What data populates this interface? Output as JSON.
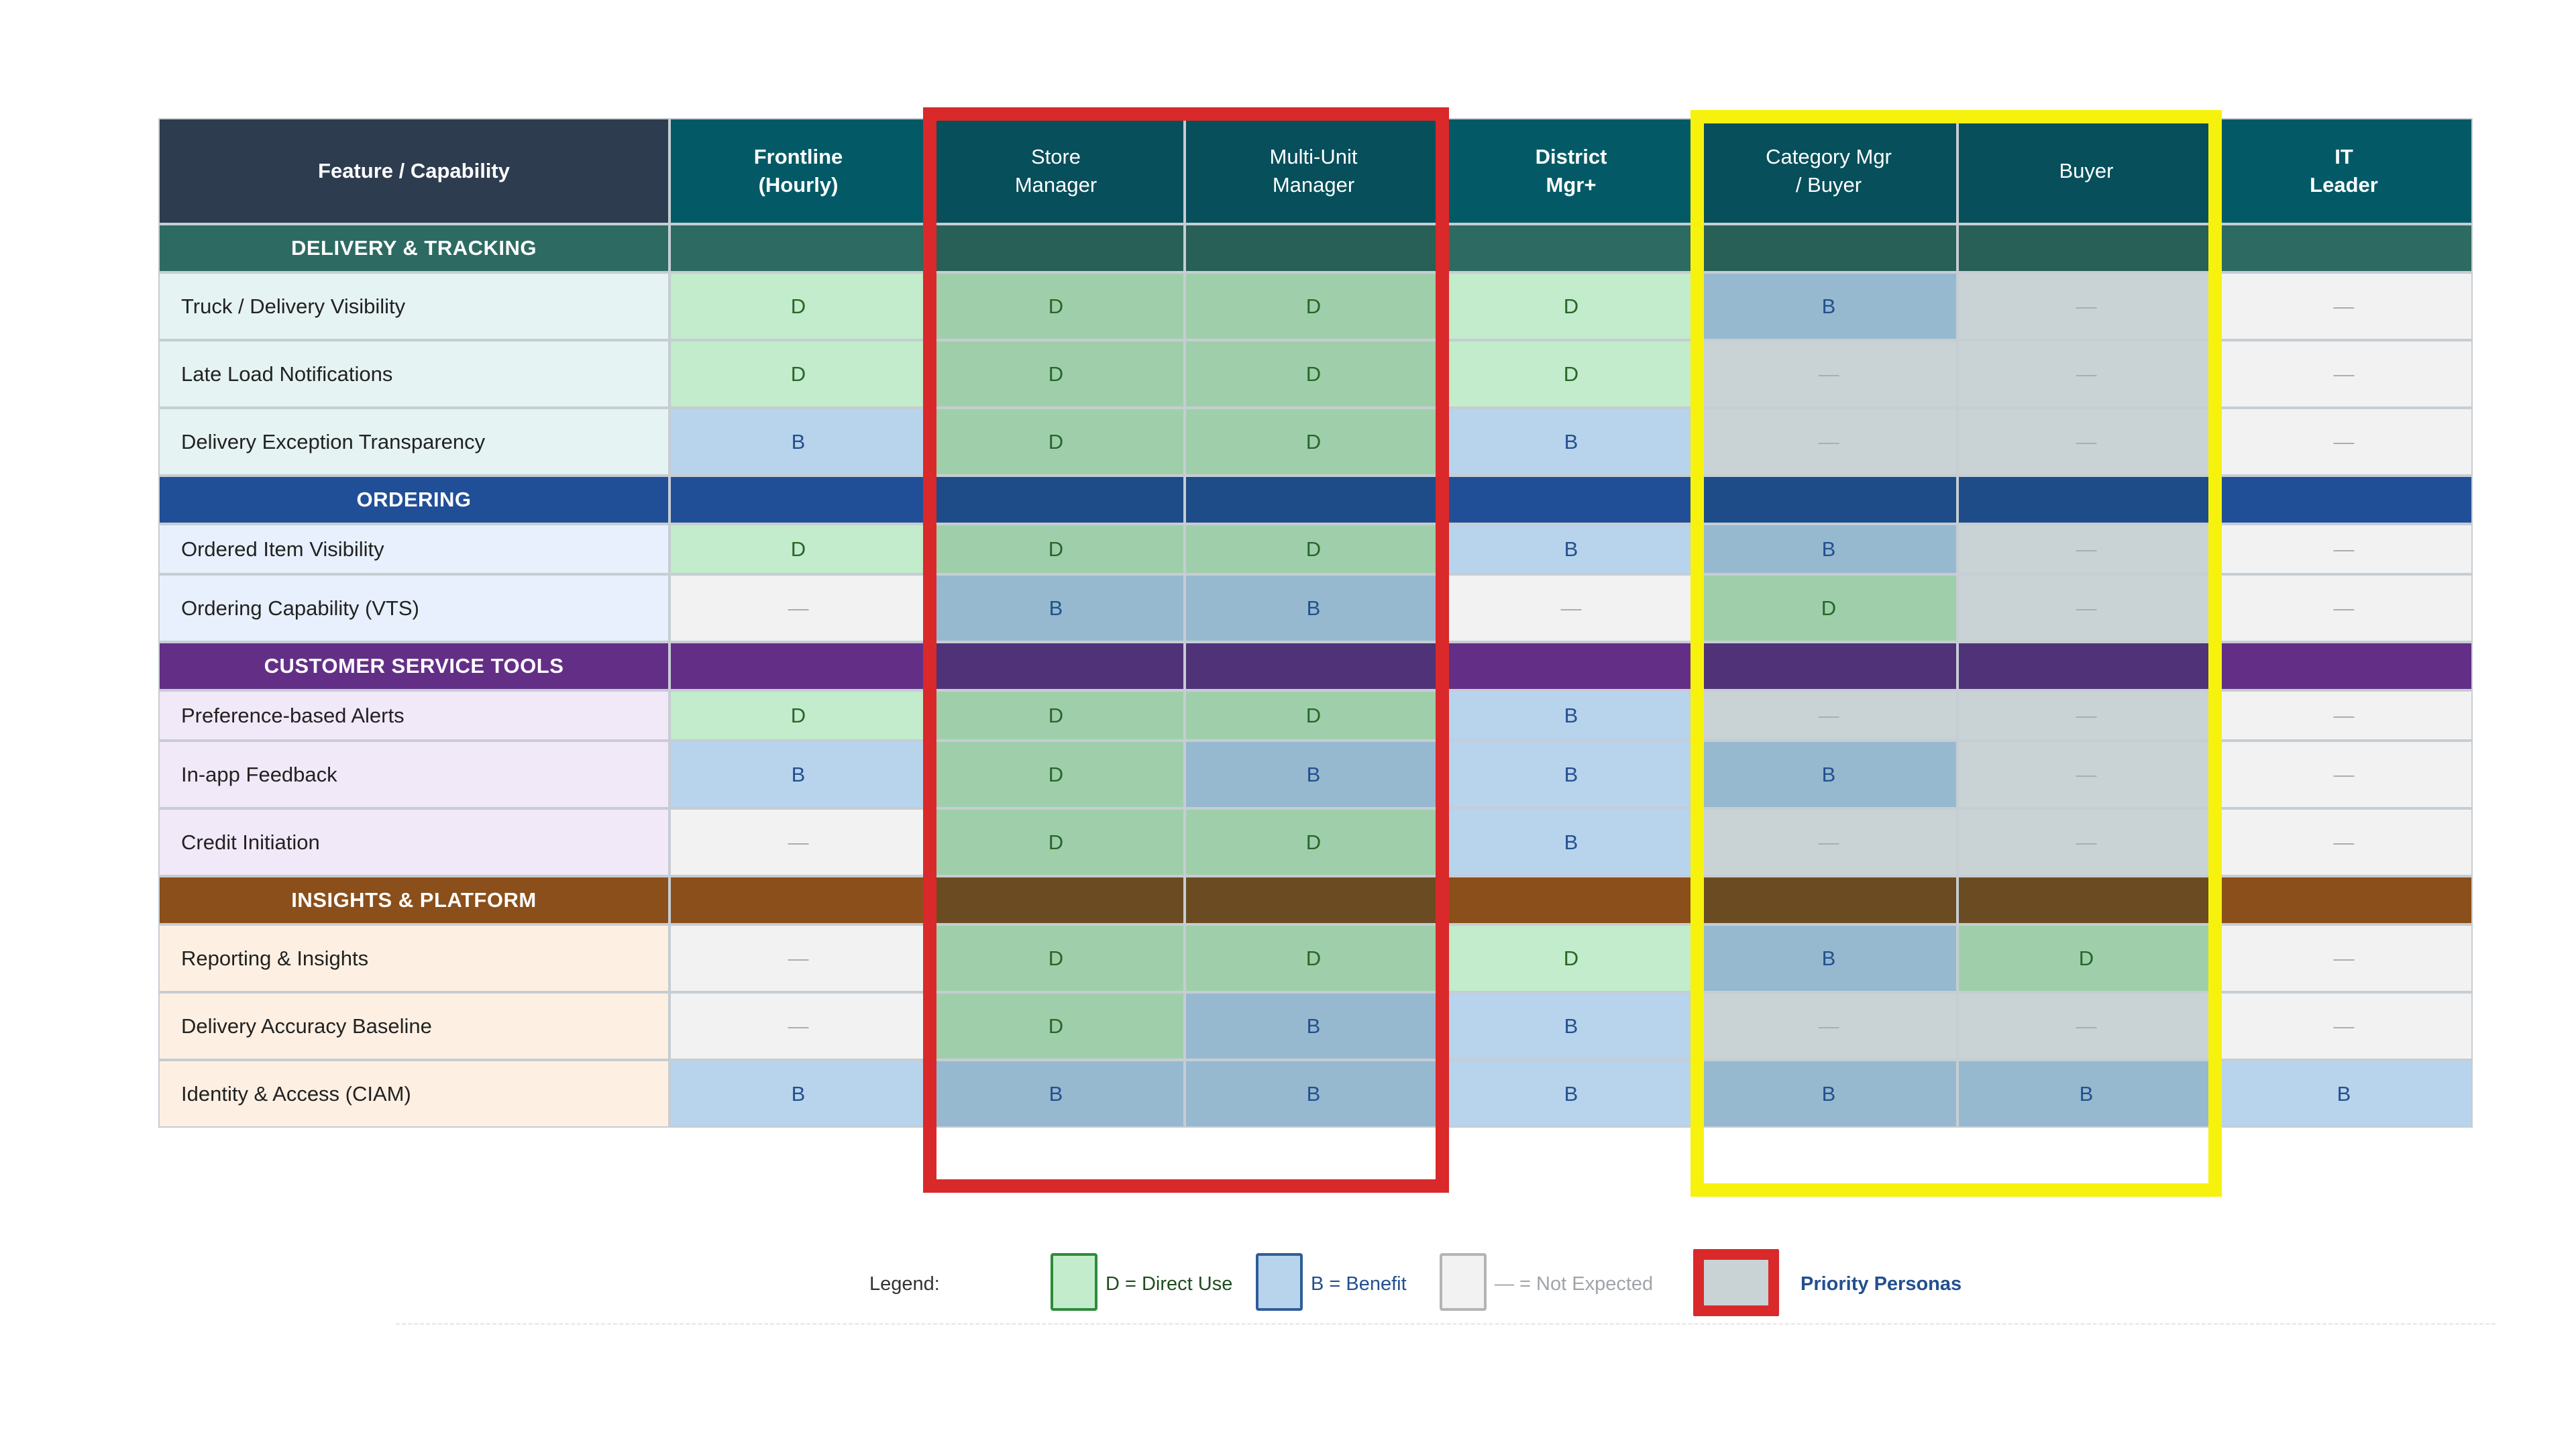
{
  "header": {
    "feature": "Feature / Capability",
    "roles": [
      {
        "line1": "Frontline",
        "line2": "(Hourly)"
      },
      {
        "line1": "Store",
        "line2": "Manager"
      },
      {
        "line1": "Multi-Unit",
        "line2": "Manager"
      },
      {
        "line1": "District",
        "line2": "Mgr+"
      },
      {
        "line1": "Category Mgr",
        "line2": "/ Buyer"
      },
      {
        "line1": "Buyer",
        "line2": ""
      },
      {
        "line1": "IT",
        "line2": "Leader"
      }
    ]
  },
  "sections": [
    {
      "title": "DELIVERY & TRACKING",
      "rows": [
        {
          "feature": "Truck / Delivery Visibility",
          "values": [
            "D",
            "D",
            "D",
            "D",
            "B",
            "—",
            "—"
          ]
        },
        {
          "feature": "Late Load Notifications",
          "values": [
            "D",
            "D",
            "D",
            "D",
            "—",
            "—",
            "—"
          ]
        },
        {
          "feature": "Delivery Exception Transparency",
          "values": [
            "B",
            "D",
            "D",
            "B",
            "—",
            "—",
            "—"
          ]
        }
      ]
    },
    {
      "title": "ORDERING",
      "rows": [
        {
          "feature": "Ordered Item Visibility",
          "values": [
            "D",
            "D",
            "D",
            "B",
            "B",
            "—",
            "—"
          ]
        },
        {
          "feature": "Ordering Capability (VTS)",
          "values": [
            "—",
            "B",
            "B",
            "—",
            "D",
            "—",
            "—"
          ]
        }
      ]
    },
    {
      "title": "CUSTOMER SERVICE TOOLS",
      "rows": [
        {
          "feature": "Preference-based Alerts",
          "values": [
            "D",
            "D",
            "D",
            "B",
            "—",
            "—",
            "—"
          ]
        },
        {
          "feature": "In-app Feedback",
          "values": [
            "B",
            "D",
            "B",
            "B",
            "B",
            "—",
            "—"
          ]
        },
        {
          "feature": "Credit Initiation",
          "values": [
            "—",
            "D",
            "D",
            "B",
            "—",
            "—",
            "—"
          ]
        }
      ]
    },
    {
      "title": "INSIGHTS & PLATFORM",
      "rows": [
        {
          "feature": "Reporting & Insights",
          "values": [
            "—",
            "D",
            "D",
            "D",
            "B",
            "D",
            "—"
          ]
        },
        {
          "feature": "Delivery Accuracy Baseline",
          "values": [
            "—",
            "D",
            "B",
            "B",
            "—",
            "—",
            "—"
          ]
        },
        {
          "feature": "Identity & Access (CIAM)",
          "values": [
            "B",
            "B",
            "B",
            "B",
            "B",
            "B",
            "B"
          ]
        }
      ]
    }
  ],
  "legend": {
    "label": "Legend:",
    "direct": "D = Direct Use",
    "benefit": "B = Benefit",
    "not_expected": "— = Not Expected",
    "priority": "Priority Personas"
  },
  "colors": {
    "direct_use": "#c2eccb",
    "benefit": "#b8d3ec",
    "not_expected": "#f2f2f2",
    "priority_frame": "#d9292a",
    "secondary_frame": "#f6f20e",
    "header_dark": "#2e3c4f",
    "header_teal": "#035a66"
  }
}
